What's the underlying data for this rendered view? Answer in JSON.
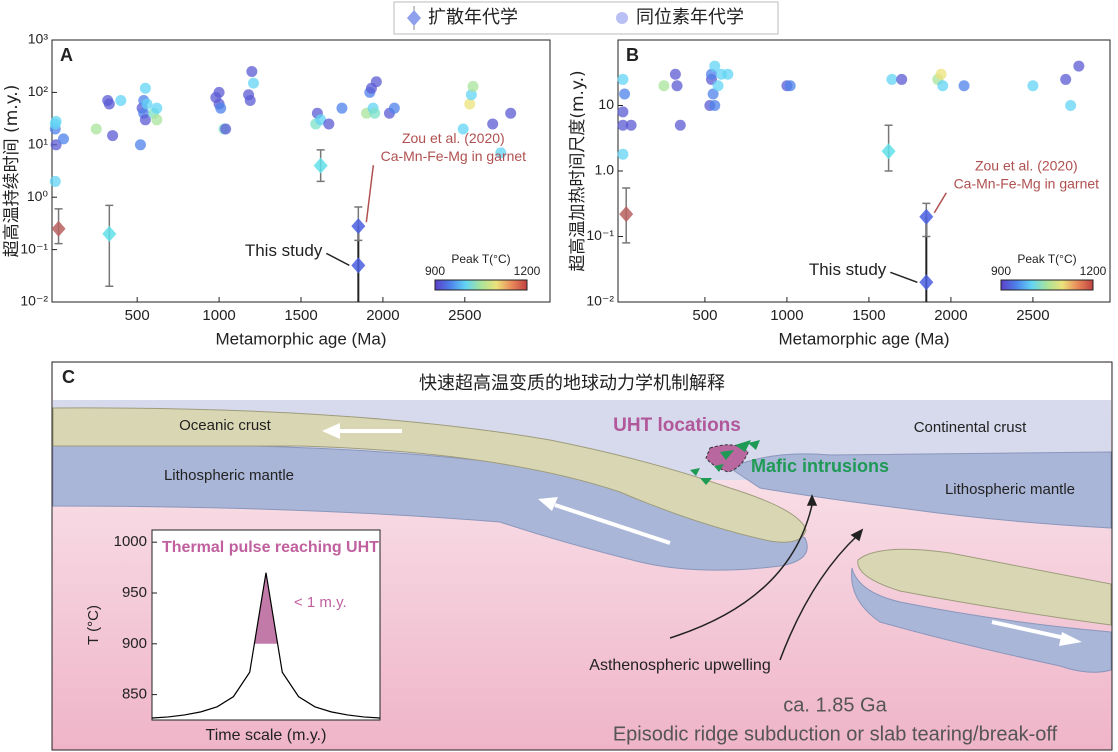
{
  "legend": {
    "items": [
      "扩散年代学",
      "同位素年代学"
    ]
  },
  "chart_data": [
    {
      "type": "scatter",
      "label": "A",
      "xlabel": "Metamorphic age (Ma)",
      "ylabel": "超高温持续时间 (m.y.)",
      "log_y": true,
      "xlim": [
        -20,
        3020
      ],
      "xticks": [
        500,
        1000,
        1500,
        2000,
        2500
      ],
      "ylim": [
        0.01,
        1000
      ],
      "yticks": [
        {
          "value": 1000,
          "label": "10³"
        },
        {
          "value": 100,
          "label": "10²"
        },
        {
          "value": 10,
          "label": "10¹"
        },
        {
          "value": 1,
          "label": "10⁰"
        },
        {
          "value": 0.1,
          "label": "10⁻¹"
        },
        {
          "value": 0.01,
          "label": "10⁻²"
        }
      ],
      "series": [
        {
          "marker": "circle",
          "x": [
            0,
            0,
            5,
            0,
            5,
            50,
            250,
            320,
            330,
            350,
            400,
            520,
            530,
            540,
            540,
            550,
            550,
            560,
            600,
            620,
            620,
            980,
            1000,
            1000,
            1010,
            1030,
            1040,
            1180,
            1190,
            1200,
            1210,
            1590,
            1600,
            1620,
            1670,
            1750,
            1900,
            1920,
            1930,
            1940,
            1950,
            1960,
            2040,
            2070,
            2490,
            2530,
            2540,
            2550,
            2670,
            2720,
            2780
          ],
          "values": [
            20,
            25,
            10,
            2,
            28,
            13,
            20,
            70,
            60,
            15,
            70,
            10,
            50,
            70,
            40,
            30,
            120,
            60,
            40,
            50,
            30,
            80,
            100,
            60,
            50,
            20,
            20,
            90,
            70,
            250,
            150,
            25,
            40,
            30,
            25,
            50,
            40,
            100,
            120,
            50,
            40,
            160,
            40,
            50,
            20,
            60,
            90,
            130,
            25,
            7,
            40
          ],
          "colors": [
            "#4d82ea",
            "#62d4f4",
            "#5b5bd4",
            "#62d4f4",
            "#62d4f4",
            "#4d82ea",
            "#a8e39a",
            "#5b5bd4",
            "#5b5bd4",
            "#5b5bd4",
            "#62d4f4",
            "#4d82ea",
            "#5b5bd4",
            "#4d82ea",
            "#4d82ea",
            "#5b5bd4",
            "#62d4f4",
            "#62d4f4",
            "#7de0c8",
            "#62d4f4",
            "#a8e39a",
            "#5b5bd4",
            "#5b5bd4",
            "#5b5bd4",
            "#4d82ea",
            "#7de0c8",
            "#5b5bd4",
            "#5b5bd4",
            "#5b5bd4",
            "#5b5bd4",
            "#62d4f4",
            "#7de0c8",
            "#5b5bd4",
            "#62d4f4",
            "#5b5bd4",
            "#4d82ea",
            "#a8e39a",
            "#4d82ea",
            "#5b5bd4",
            "#62d4f4",
            "#7de0c8",
            "#5b5bd4",
            "#5b5bd4",
            "#4d82ea",
            "#62d4f4",
            "#ece27a",
            "#62d4f4",
            "#a8e39a",
            "#5b5bd4",
            "#62d4f4",
            "#5b5bd4"
          ]
        },
        {
          "marker": "diamond",
          "x": [
            20,
            330,
            1620,
            1850,
            1850
          ],
          "values": [
            0.25,
            0.2,
            4,
            0.28,
            0.05
          ],
          "err_low": [
            0.13,
            0.02,
            2,
            0.15,
            null
          ],
          "err_high": [
            0.6,
            0.7,
            8,
            0.65,
            null
          ],
          "colors": [
            "#b86060",
            "#5fe0e8",
            "#5fe0e8",
            "#4a5fe0",
            "#4a5fe0"
          ]
        }
      ],
      "annotations": [
        "This study",
        "Zou et al. (2020)",
        "Ca-Mn-Fe-Mg in garnet"
      ],
      "colorbar": {
        "label": "Peak T(°C)",
        "ticks": [
          900,
          1200
        ],
        "colors": [
          "#5b3fc8",
          "#4d82ea",
          "#62d4f4",
          "#a8e39a",
          "#ece27a",
          "#e88a5a",
          "#c04040"
        ]
      }
    },
    {
      "type": "scatter",
      "label": "B",
      "xlabel": "Metamorphic age (Ma)",
      "ylabel": "超高温加热时间尺度(m.y.)",
      "log_y": true,
      "xlim": [
        -30,
        2970
      ],
      "xticks": [
        500,
        1000,
        1500,
        2000,
        2500
      ],
      "ylim": [
        0.01,
        100
      ],
      "yticks": [
        {
          "value": 10,
          "label": "10"
        },
        {
          "value": 1,
          "label": "1.0"
        },
        {
          "value": 0.1,
          "label": "10⁻¹"
        },
        {
          "value": 0.01,
          "label": "10⁻²"
        }
      ],
      "series": [
        {
          "marker": "circle",
          "x": [
            0,
            0,
            0,
            0,
            10,
            50,
            250,
            320,
            330,
            350,
            530,
            540,
            540,
            550,
            560,
            560,
            580,
            600,
            640,
            1000,
            1020,
            1640,
            1700,
            1920,
            1940,
            1950,
            2080,
            2500,
            2700,
            2730,
            2780
          ],
          "values": [
            25,
            8,
            5,
            1.8,
            15,
            5,
            20,
            30,
            20,
            5,
            10,
            25,
            30,
            15,
            40,
            10,
            20,
            30,
            30,
            20,
            20,
            25,
            25,
            25,
            30,
            20,
            20,
            20,
            25,
            10,
            40
          ],
          "colors": [
            "#62d4f4",
            "#5b5bd4",
            "#5b5bd4",
            "#62d4f4",
            "#4d82ea",
            "#5b5bd4",
            "#a8e39a",
            "#5b5bd4",
            "#5b5bd4",
            "#5b5bd4",
            "#5b5bd4",
            "#5b5bd4",
            "#4d82ea",
            "#4d82ea",
            "#62d4f4",
            "#4d82ea",
            "#62d4f4",
            "#62d4f4",
            "#62d4f4",
            "#5b5bd4",
            "#4d82ea",
            "#62d4f4",
            "#5b5bd4",
            "#a8e39a",
            "#ece27a",
            "#62d4f4",
            "#4d82ea",
            "#62d4f4",
            "#5b5bd4",
            "#62d4f4",
            "#5b5bd4"
          ]
        },
        {
          "marker": "diamond",
          "x": [
            20,
            1620,
            1850,
            1850
          ],
          "values": [
            0.22,
            2,
            0.2,
            0.02
          ],
          "err_low": [
            0.08,
            1,
            0.1,
            null
          ],
          "err_high": [
            0.55,
            5,
            0.32,
            null
          ],
          "colors": [
            "#b86060",
            "#5fe0e8",
            "#4a5fe0",
            "#4a5fe0"
          ]
        }
      ],
      "annotations": [
        "This study",
        "Zou et al. (2020)",
        "Ca-Mn-Fe-Mg in garnet"
      ],
      "colorbar": {
        "label": "Peak T(°C)",
        "ticks": [
          900,
          1200
        ],
        "colors": [
          "#5b3fc8",
          "#4d82ea",
          "#62d4f4",
          "#a8e39a",
          "#ece27a",
          "#e88a5a",
          "#c04040"
        ]
      }
    },
    {
      "type": "line",
      "title": "Thermal pulse reaching UHT",
      "xlabel": "Time scale (m.y.)",
      "ylabel": "T (°C)",
      "annotation": "< 1 m.y.",
      "categories": [
        null,
        null,
        null,
        null,
        null,
        null,
        null,
        null,
        null,
        null,
        null,
        null,
        null,
        null,
        null
      ],
      "values": [
        827,
        828,
        830,
        833,
        838,
        848,
        872,
        970,
        872,
        848,
        838,
        833,
        830,
        828,
        827
      ],
      "ylim": [
        825,
        1012
      ],
      "yticks": [
        850,
        900,
        950,
        1000
      ],
      "shade_above": 900,
      "color": "#000000",
      "shade_color": "#c27aa8"
    }
  ],
  "diagram": {
    "label": "C",
    "title": "快速超高温变质的地球动力学机制解释",
    "oceanic_crust": "Oceanic crust",
    "continental_crust": "Continental crust",
    "uht_locations": "UHT locations",
    "mafic_intrusions": "Mafic intrusions",
    "lith_mantle_left": "Lithospheric mantle",
    "lith_mantle_right": "Lithospheric mantle",
    "upwelling": "Asthenospheric upwelling",
    "age": "ca. 1.85 Ga",
    "mechanism": "Episodic ridge subduction or slab tearing/break-off"
  }
}
